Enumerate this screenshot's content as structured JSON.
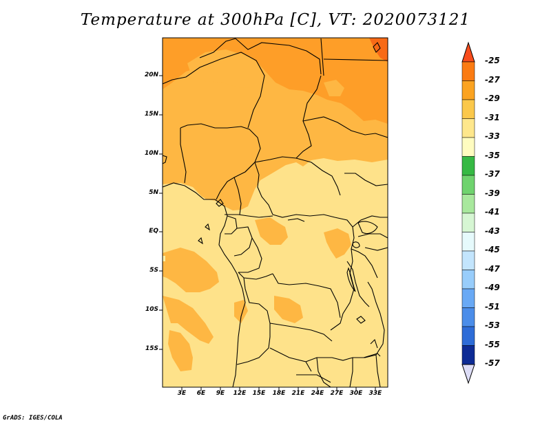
{
  "title": "Temperature at 300hPa [C], VT: 2020073121",
  "credit": "GrADS: IGES/COLA",
  "map": {
    "lat_labels": [
      "20N",
      "15N",
      "10N",
      "5N",
      "EQ",
      "5S",
      "10S",
      "15S"
    ],
    "lon_labels": [
      "3E",
      "6E",
      "9E",
      "12E",
      "15E",
      "18E",
      "21E",
      "24E",
      "27E",
      "30E",
      "33E"
    ],
    "fill_colors": {
      "-35_-33": "#fef0a6",
      "-33_-31": "#fee28a",
      "-31_-29": "#feb743",
      "-29_-27": "#fe9e28",
      "-27_-25": "#f86a16"
    }
  },
  "colorbar": {
    "labels": [
      "-25",
      "-27",
      "-29",
      "-31",
      "-33",
      "-35",
      "-37",
      "-39",
      "-41",
      "-43",
      "-45",
      "-47",
      "-49",
      "-51",
      "-53",
      "-55",
      "-57"
    ],
    "colors": [
      "#f84c1c",
      "#fb7b12",
      "#fba321",
      "#fbc84b",
      "#fee78c",
      "#fffcc0",
      "#36b944",
      "#6fd36e",
      "#a8e89d",
      "#d6f6d3",
      "#e6fafc",
      "#c3e5fd",
      "#98cdfb",
      "#69a9f5",
      "#4b8de9",
      "#2e6cd7",
      "#1a4ab6",
      "#0d2b95",
      "#0b136e",
      "#ddddf7"
    ]
  }
}
